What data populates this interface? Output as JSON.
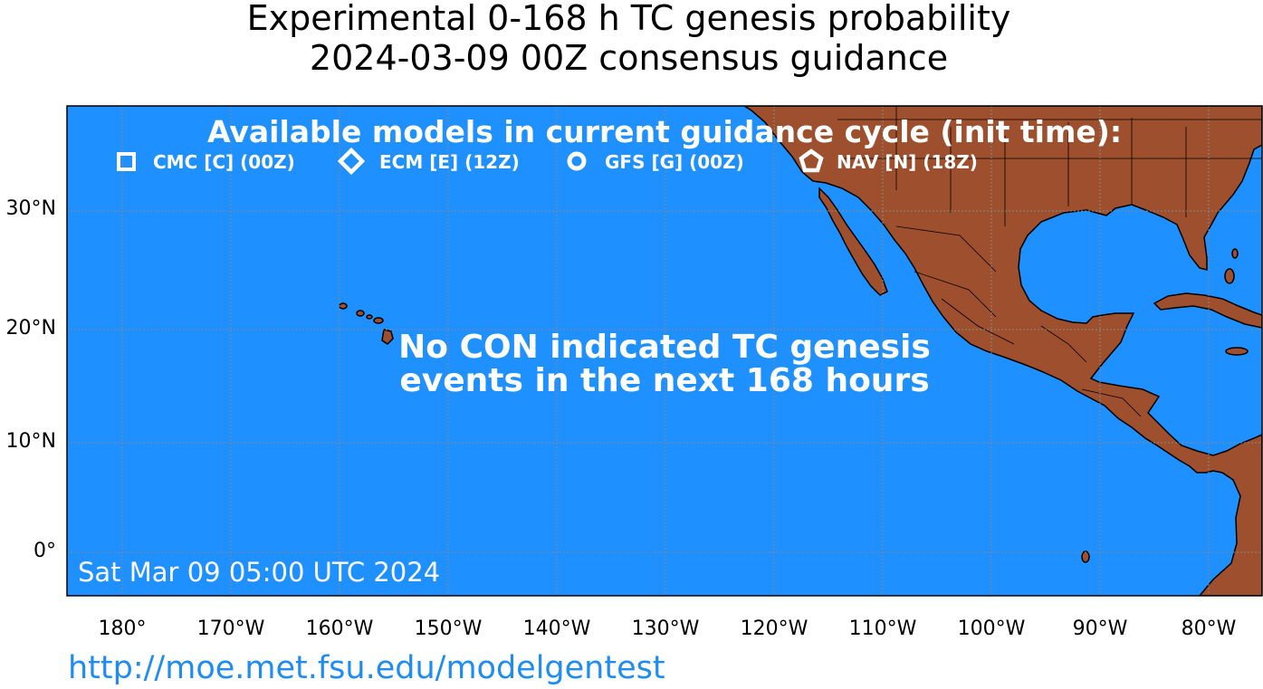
{
  "title": {
    "line1": "Experimental 0-168 h TC genesis probability",
    "line2": "2024-03-09 00Z consensus guidance"
  },
  "map": {
    "ocean_color": "#1e90ff",
    "land_color": "#9e4f2d",
    "legend": {
      "heading": "Available models in current guidance cycle (init time):",
      "models": [
        {
          "icon": "square-marker",
          "label": "CMC [C] (00Z)"
        },
        {
          "icon": "diamond-marker",
          "label": "ECM [E] (12Z)"
        },
        {
          "icon": "circle-marker",
          "label": "GFS [G] (00Z)"
        },
        {
          "icon": "pentagon-marker",
          "label": "NAV [N] (18Z)"
        }
      ]
    },
    "message": {
      "line1": "No CON indicated TC genesis",
      "line2": "events in the next 168 hours"
    },
    "timestamp": "Sat Mar 09 05:00 UTC 2024",
    "x_ticks": [
      "180°",
      "170°W",
      "160°W",
      "150°W",
      "140°W",
      "130°W",
      "120°W",
      "110°W",
      "100°W",
      "90°W",
      "80°W"
    ],
    "y_ticks": [
      "30°N",
      "20°N",
      "10°N",
      "0°"
    ]
  },
  "footer": {
    "url": "http://moe.met.fsu.edu/modelgentest"
  }
}
